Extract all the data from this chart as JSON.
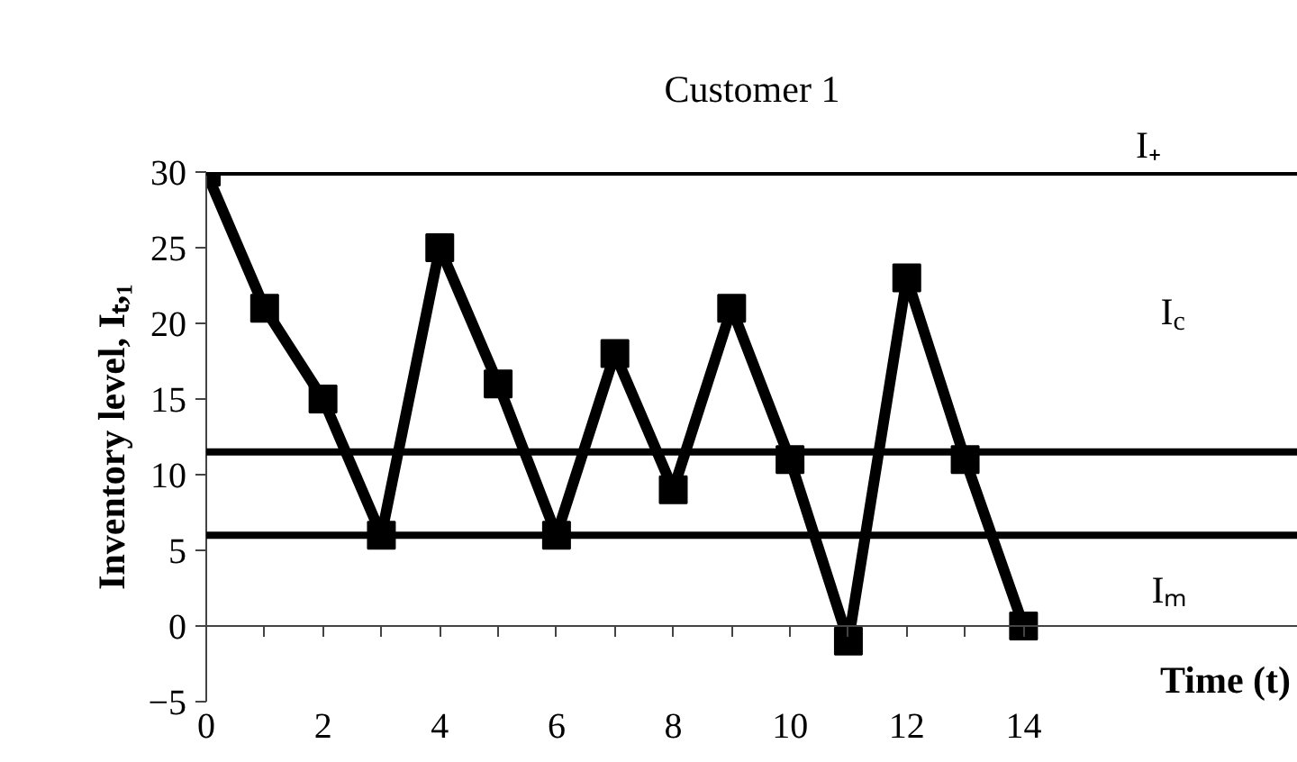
{
  "chart_data": {
    "type": "line",
    "title": "Customer 1",
    "xlabel": "Time (t)",
    "ylabel": "Inventory level, Iₜ,₁",
    "x": [
      0,
      1,
      2,
      3,
      4,
      5,
      6,
      7,
      8,
      9,
      10,
      11,
      12,
      13,
      14
    ],
    "series": [
      {
        "color": "#000000",
        "values": [
          30,
          21,
          15,
          6,
          25,
          16,
          6,
          18,
          9,
          21,
          11,
          -1,
          23,
          11,
          0
        ]
      }
    ],
    "marker": "square",
    "line_style": "solid",
    "grid": false,
    "xlim": [
      0,
      18.7
    ],
    "ylim": [
      -5,
      30
    ],
    "xticks": [
      0,
      {
        "value": 1,
        "label": null
      },
      2,
      {
        "value": 3,
        "label": null
      },
      4,
      {
        "value": 5,
        "label": null
      },
      6,
      {
        "value": 7,
        "label": null
      },
      8,
      {
        "value": 9,
        "label": null
      },
      10,
      {
        "value": 11,
        "label": null
      },
      12,
      {
        "value": 13,
        "label": null
      },
      14
    ],
    "yticks": [
      -5,
      0,
      5,
      10,
      15,
      20,
      25,
      30
    ],
    "ref_lines": [
      {
        "axis": "y",
        "value": 30,
        "label": "I₊",
        "color": "#000000"
      },
      {
        "axis": "y",
        "value": 11.5,
        "color": "#000000"
      },
      {
        "axis": "y",
        "value": 6,
        "color": "#000000"
      }
    ],
    "annotations": [
      "I$_{c}$",
      "Iₘ"
    ]
  }
}
